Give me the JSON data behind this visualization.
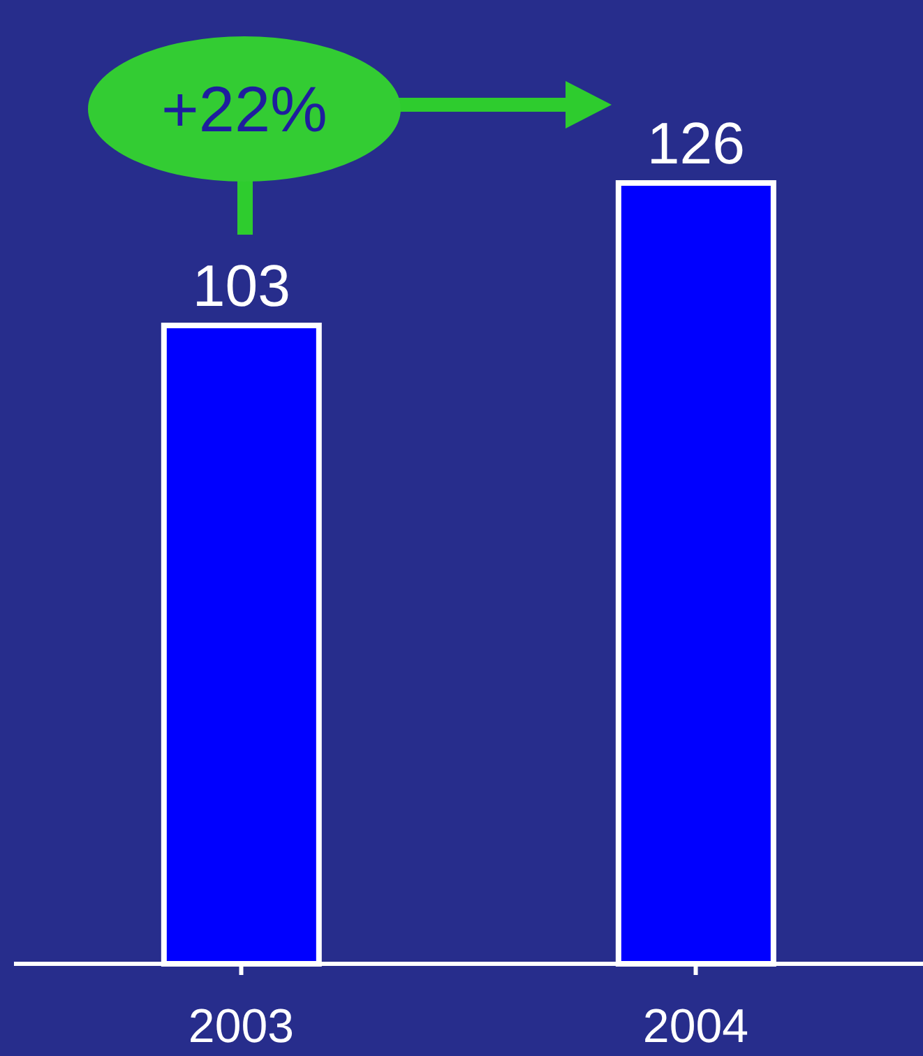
{
  "chart_data": {
    "type": "bar",
    "categories": [
      "2003",
      "2004"
    ],
    "values": [
      103,
      126
    ],
    "color": "#0000ff",
    "data_labels": true,
    "annotations": [
      "+22%"
    ]
  }
}
